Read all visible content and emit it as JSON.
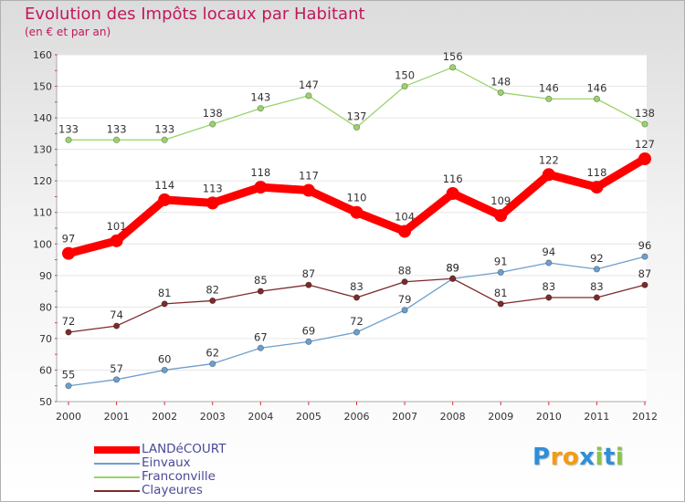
{
  "title": "Evolution des Impôts locaux par Habitant",
  "subtitle": "(en € et par an)",
  "logo": {
    "letters": [
      {
        "ch": "P",
        "color": "#2f8fd8"
      },
      {
        "ch": "r",
        "color": "#f39c12"
      },
      {
        "ch": "o",
        "color": "#f39c12"
      },
      {
        "ch": "x",
        "color": "#2f8fd8"
      },
      {
        "ch": "i",
        "color": "#8bc34a"
      },
      {
        "ch": "t",
        "color": "#2f8fd8"
      },
      {
        "ch": "i",
        "color": "#8bc34a"
      }
    ]
  },
  "chart_data": {
    "type": "line",
    "title": "Evolution des Impôts locaux par Habitant",
    "subtitle": "(en € et par an)",
    "xlabel": "",
    "ylabel": "",
    "categories": [
      "2000",
      "2001",
      "2002",
      "2003",
      "2004",
      "2005",
      "2006",
      "2007",
      "2008",
      "2009",
      "2010",
      "2011",
      "2012"
    ],
    "ylim": [
      50,
      160
    ],
    "yticks": [
      50,
      60,
      70,
      80,
      90,
      100,
      110,
      120,
      130,
      140,
      150,
      160
    ],
    "grid": "horizontal",
    "legend_position": "bottom-left",
    "series": [
      {
        "name": "LANDéCOURT",
        "color": "#ff0000",
        "emphasis": true,
        "values": [
          97,
          101,
          114,
          113,
          118,
          117,
          110,
          104,
          116,
          109,
          122,
          118,
          127
        ]
      },
      {
        "name": "Einvaux",
        "color": "#6d9fcd",
        "values": [
          55,
          57,
          60,
          62,
          67,
          69,
          72,
          79,
          89,
          91,
          94,
          92,
          96
        ]
      },
      {
        "name": "Franconville",
        "color": "#9ad36b",
        "values": [
          133,
          133,
          133,
          138,
          143,
          147,
          137,
          150,
          156,
          148,
          146,
          146,
          138
        ]
      },
      {
        "name": "Clayeures",
        "color": "#7d2a2a",
        "values": [
          72,
          74,
          81,
          82,
          85,
          87,
          83,
          88,
          89,
          81,
          83,
          83,
          87
        ]
      }
    ]
  }
}
